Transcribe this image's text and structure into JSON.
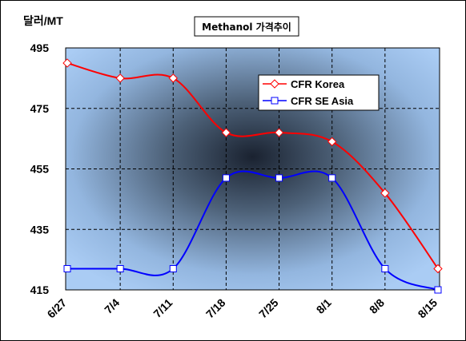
{
  "chart_data": {
    "type": "line",
    "title": "Methanol 가격추이",
    "ylabel": "달러/MT",
    "xlabel": "",
    "categories": [
      "6/27",
      "7/4",
      "7/11",
      "7/18",
      "7/25",
      "8/1",
      "8/8",
      "8/15"
    ],
    "yticks": [
      "495",
      "475",
      "455",
      "435",
      "415"
    ],
    "ylim": [
      415,
      495
    ],
    "grid": true,
    "legend_position": "top-right",
    "series": [
      {
        "name": "CFR Korea",
        "color": "#ff0000",
        "marker": "diamond",
        "values": [
          490,
          485,
          485,
          467,
          467,
          464,
          447,
          422
        ]
      },
      {
        "name": "CFR SE Asia",
        "color": "#0000ff",
        "marker": "square",
        "values": [
          422,
          422,
          422,
          452,
          452,
          452,
          422,
          415
        ]
      }
    ]
  }
}
